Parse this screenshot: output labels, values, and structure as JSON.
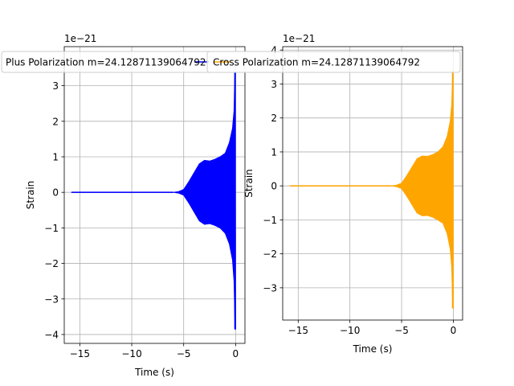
{
  "chart_data": [
    {
      "type": "line",
      "title": "",
      "xlabel": "Time (s)",
      "ylabel": "Strain",
      "offset_text": "1e−21",
      "xlim": [
        -16.5,
        0.9
      ],
      "ylim": [
        -4.25,
        4.1
      ],
      "x_ticks": [
        -15,
        -10,
        -5,
        0
      ],
      "x_tick_labels": [
        "−15",
        "−10",
        "−5",
        "0"
      ],
      "y_ticks": [
        -4,
        -3,
        -2,
        -1,
        0,
        1,
        2,
        3
      ],
      "y_tick_labels": [
        "−4",
        "−3",
        "−2",
        "−1",
        "0",
        "1",
        "2",
        "3"
      ],
      "grid": true,
      "legend": {
        "placement": "top",
        "entries": [
          "Plus Polarization m=24.12871139064792"
        ]
      },
      "series": [
        {
          "name": "Plus Polarization m=24.12871139064792",
          "color": "#0000ff",
          "envelope": {
            "x": [
              -15.8,
              -6.0,
              -5.5,
              -5.0,
              -4.5,
              -4.0,
              -3.5,
              -3.0,
              -2.5,
              -2.0,
              -1.5,
              -1.0,
              -0.6,
              -0.3,
              -0.15,
              -0.05,
              0.0
            ],
            "upper": [
              0.0,
              0.0,
              0.02,
              0.08,
              0.3,
              0.55,
              0.8,
              0.9,
              0.88,
              0.93,
              1.0,
              1.1,
              1.4,
              1.8,
              2.3,
              3.7,
              -3.85
            ],
            "lower": [
              0.0,
              0.0,
              -0.02,
              -0.08,
              -0.3,
              -0.55,
              -0.8,
              -0.9,
              -0.88,
              -0.93,
              -1.0,
              -1.15,
              -1.45,
              -1.9,
              -2.5,
              -3.85,
              -3.85
            ]
          }
        }
      ]
    },
    {
      "type": "line",
      "title": "",
      "xlabel": "Time (s)",
      "ylabel": "Strain",
      "offset_text": "1e−21",
      "xlim": [
        -16.5,
        0.9
      ],
      "ylim": [
        -3.95,
        4.1
      ],
      "x_ticks": [
        -15,
        -10,
        -5,
        0
      ],
      "x_tick_labels": [
        "−15",
        "−10",
        "−5",
        "0"
      ],
      "y_ticks": [
        -3,
        -2,
        -1,
        0,
        1,
        2,
        3,
        4
      ],
      "y_tick_labels": [
        "−3",
        "−2",
        "−1",
        "0",
        "1",
        "2",
        "3",
        "4"
      ],
      "grid": true,
      "legend": {
        "placement": "top",
        "entries": [
          "Cross Polarization m=24.12871139064792"
        ]
      },
      "series": [
        {
          "name": "Cross Polarization m=24.12871139064792",
          "color": "#ffa500",
          "envelope": {
            "x": [
              -15.8,
              -6.0,
              -5.5,
              -5.0,
              -4.5,
              -4.0,
              -3.5,
              -3.0,
              -2.5,
              -2.0,
              -1.5,
              -1.0,
              -0.6,
              -0.3,
              -0.15,
              -0.05,
              0.0
            ],
            "upper": [
              0.0,
              0.0,
              0.02,
              0.08,
              0.3,
              0.55,
              0.8,
              0.88,
              0.87,
              0.92,
              1.0,
              1.15,
              1.45,
              1.9,
              2.4,
              3.4,
              -3.6
            ],
            "lower": [
              0.0,
              0.0,
              -0.02,
              -0.08,
              -0.3,
              -0.55,
              -0.8,
              -0.88,
              -0.87,
              -0.92,
              -1.0,
              -1.1,
              -1.4,
              -1.85,
              -2.4,
              -3.6,
              -3.6
            ]
          }
        }
      ]
    }
  ]
}
